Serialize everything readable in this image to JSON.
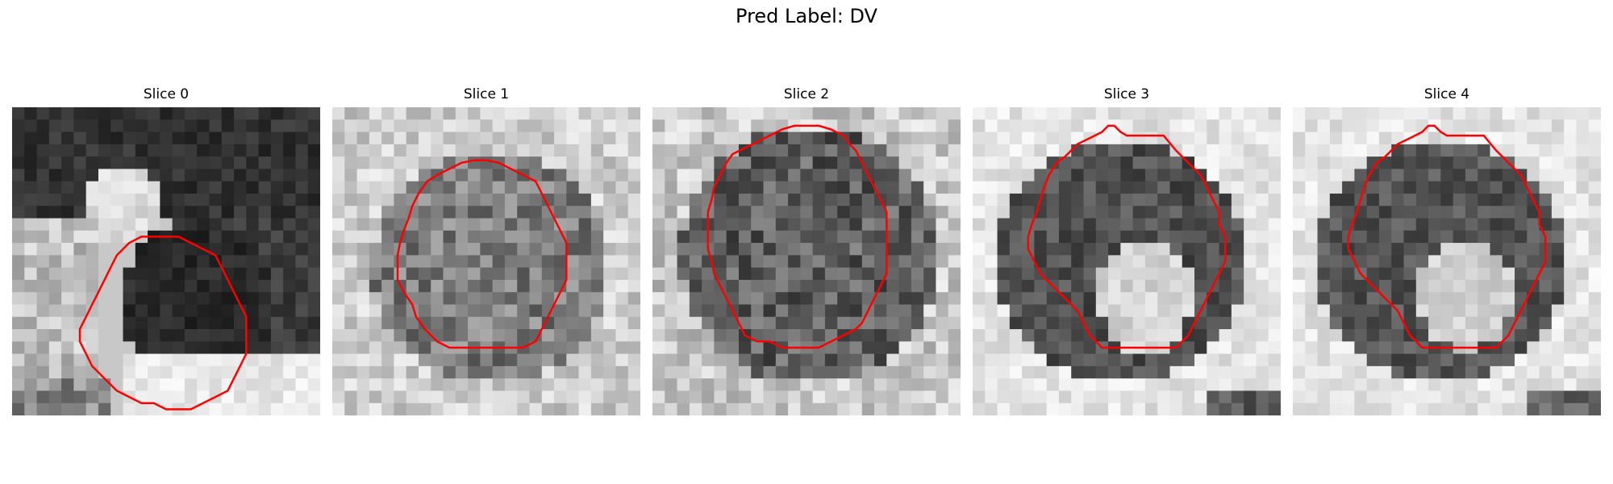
{
  "figure": {
    "title": "Pred Label: DV"
  },
  "panels": [
    {
      "label": "Slice 0",
      "contour_color": "#ff0000"
    },
    {
      "label": "Slice 1",
      "contour_color": "#ff0000"
    },
    {
      "label": "Slice 2",
      "contour_color": "#ff0000"
    },
    {
      "label": "Slice 3",
      "contour_color": "#ff0000"
    },
    {
      "label": "Slice 4",
      "contour_color": "#ff0000"
    }
  ]
}
